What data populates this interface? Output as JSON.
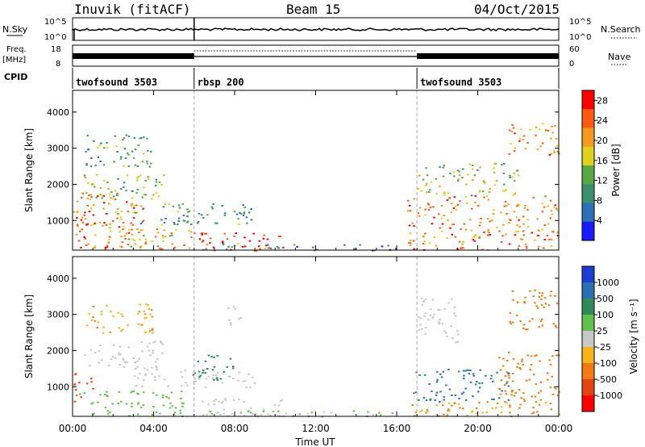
{
  "header": {
    "station": "Inuvik (fitACF)",
    "beam": "Beam 15",
    "date": "04/Oct/2015"
  },
  "top_panels": {
    "nsky_label": "N.Sky",
    "nsky_ticks": [
      "10^5",
      "10^0"
    ],
    "nsearch_label": "N.Search",
    "nsearch_ticks": [
      "10^5",
      "10^0"
    ],
    "freq_label": "Freq.",
    "freq_unit": "[MHz]",
    "freq_ticks": [
      "18",
      "8"
    ],
    "nave_label": "Nave",
    "nave_ticks": [
      "60",
      "0"
    ],
    "cpid_label": "CPID",
    "cpid_segments": [
      {
        "name": "twofsound 3503",
        "start_hour": 0,
        "end_hour": 6
      },
      {
        "name": "rbsp 200",
        "start_hour": 6,
        "end_hour": 17
      },
      {
        "name": "twofsound 3503",
        "start_hour": 17,
        "end_hour": 24
      }
    ]
  },
  "chart_data": [
    {
      "type": "heatmap",
      "panel": "power",
      "xlabel": "",
      "ylabel": "Slant Range [km]",
      "xlim": [
        0,
        24
      ],
      "ylim": [
        180,
        4600
      ],
      "yticks": [
        "1000",
        "2000",
        "3000",
        "4000"
      ],
      "colorbar_label": "Power [dB]",
      "colorbar_ticks": [
        "4",
        "8",
        "12",
        "16",
        "20",
        "24",
        "28"
      ],
      "colorbar_range": [
        0,
        30
      ],
      "colorbar_colors": [
        "#1a1aff",
        "#2f6fb5",
        "#3d8f6e",
        "#5aa845",
        "#e0d21c",
        "#f39a1f",
        "#ff5a12",
        "#ff0000"
      ],
      "regions": [
        {
          "t0": 0.1,
          "t1": 3.6,
          "r0": 200,
          "r1": 1800,
          "level": 22
        },
        {
          "t0": 0.0,
          "t1": 1.2,
          "r0": 900,
          "r1": 1500,
          "level": 27
        },
        {
          "t0": 0.5,
          "t1": 4.5,
          "r0": 1500,
          "r1": 2300,
          "level": 14
        },
        {
          "t0": 0.6,
          "t1": 4.2,
          "r0": 2500,
          "r1": 3400,
          "level": 12
        },
        {
          "t0": 1.5,
          "t1": 6.0,
          "r0": 200,
          "r1": 800,
          "level": 20
        },
        {
          "t0": 3.0,
          "t1": 9.0,
          "r0": 900,
          "r1": 1500,
          "level": 10
        },
        {
          "t0": 6.2,
          "t1": 10.6,
          "r0": 180,
          "r1": 700,
          "level": 29
        },
        {
          "t0": 6.5,
          "t1": 9.5,
          "r0": 200,
          "r1": 400,
          "level": 14
        },
        {
          "t0": 9.0,
          "t1": 16.0,
          "r0": 180,
          "r1": 350,
          "level": 8
        },
        {
          "t0": 16.5,
          "t1": 24.0,
          "r0": 200,
          "r1": 1700,
          "level": 22
        },
        {
          "t0": 17.0,
          "t1": 22.0,
          "r0": 1700,
          "r1": 2600,
          "level": 16
        },
        {
          "t0": 21.5,
          "t1": 24.0,
          "r0": 2800,
          "r1": 3700,
          "level": 21
        }
      ]
    },
    {
      "type": "heatmap",
      "panel": "velocity",
      "xlabel": "Time UT",
      "ylabel": "Slant Range [km]",
      "xlim": [
        0,
        24
      ],
      "ylim": [
        180,
        4600
      ],
      "xticks": [
        "00:00",
        "04:00",
        "08:00",
        "12:00",
        "16:00",
        "20:00",
        "00:00"
      ],
      "yticks": [
        "1000",
        "2000",
        "3000",
        "4000"
      ],
      "colorbar_label": "Velocity [m s⁻¹]",
      "colorbar_ticks": [
        "1000",
        "500",
        "100",
        "25",
        "-25",
        "-100",
        "-500",
        "-1000"
      ],
      "colorbar_colors": [
        "#1a3fd1",
        "#2c6fb0",
        "#2f8a57",
        "#62c04c",
        "#c8c8c8",
        "#f7b31a",
        "#f27a14",
        "#e44410",
        "#ff0000"
      ],
      "regions": [
        {
          "t0": 0.0,
          "t1": 1.0,
          "r0": 600,
          "r1": 1400,
          "velocity": -700
        },
        {
          "t0": 0.3,
          "t1": 5.5,
          "r0": 200,
          "r1": 900,
          "velocity": 60
        },
        {
          "t0": 0.5,
          "t1": 4.5,
          "r0": 1500,
          "r1": 2300,
          "velocity": 0
        },
        {
          "t0": 0.6,
          "t1": 4.0,
          "r0": 2500,
          "r1": 3300,
          "velocity": -80
        },
        {
          "t0": 3.0,
          "t1": 9.0,
          "r0": 1000,
          "r1": 1500,
          "velocity": 0
        },
        {
          "t0": 5.8,
          "t1": 8.0,
          "r0": 1200,
          "r1": 1900,
          "velocity": 200
        },
        {
          "t0": 6.2,
          "t1": 10.6,
          "r0": 180,
          "r1": 700,
          "velocity": 0
        },
        {
          "t0": 6.4,
          "t1": 9.0,
          "r0": 180,
          "r1": 350,
          "velocity": 40
        },
        {
          "t0": 7.5,
          "t1": 8.3,
          "r0": 2700,
          "r1": 3300,
          "velocity": 0
        },
        {
          "t0": 9.0,
          "t1": 16.0,
          "r0": 180,
          "r1": 350,
          "velocity": 30
        },
        {
          "t0": 16.5,
          "t1": 24.0,
          "r0": 180,
          "r1": 600,
          "velocity": -120
        },
        {
          "t0": 16.8,
          "t1": 21.5,
          "r0": 600,
          "r1": 1500,
          "velocity": 600
        },
        {
          "t0": 17.0,
          "t1": 19.0,
          "r0": 2200,
          "r1": 3500,
          "velocity": 0
        },
        {
          "t0": 21.0,
          "t1": 24.0,
          "r0": 600,
          "r1": 2000,
          "velocity": -300
        },
        {
          "t0": 21.5,
          "t1": 24.0,
          "r0": 2600,
          "r1": 3700,
          "velocity": -250
        }
      ]
    }
  ],
  "colors": {
    "axis": "#000000",
    "tick_line": "#999999"
  }
}
